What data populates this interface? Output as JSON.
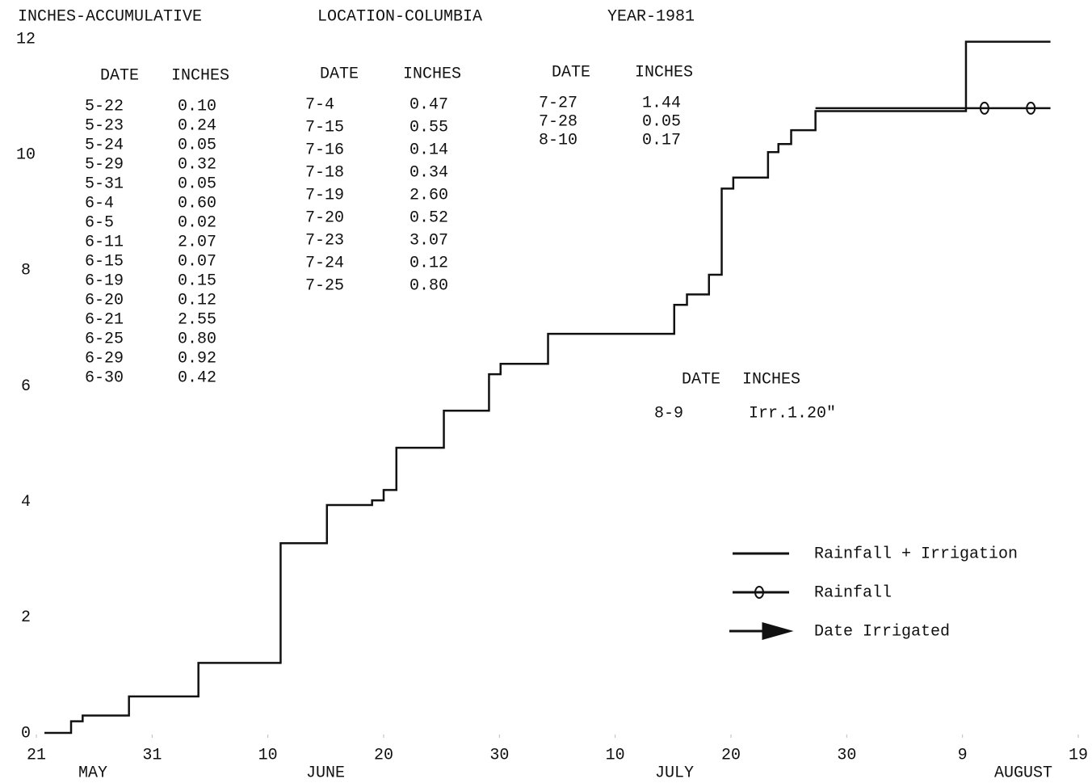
{
  "chart_data": {
    "type": "step",
    "title_left": "INCHES-ACCUMULATIVE",
    "title_center": "LOCATION-COLUMBIA",
    "title_right": "YEAR-1981",
    "x": [
      0.7,
      3.0,
      4.0,
      8.0,
      14.0,
      21.1,
      25.1,
      29.0,
      30.0,
      31.1,
      35.2,
      39.1,
      40.1,
      44.2,
      55.1,
      56.2,
      58.1,
      59.2,
      60.2,
      63.2,
      64.1,
      65.2,
      67.3,
      80.3,
      87.6
    ],
    "series": [
      {
        "name": "Rainfall + Irrigation",
        "color": "#111111",
        "x": [
          0.7,
          3.0,
          4.0,
          8.0,
          14.0,
          21.1,
          25.1,
          29.0,
          30.0,
          31.1,
          35.2,
          39.1,
          40.1,
          44.2,
          55.1,
          56.2,
          58.1,
          59.2,
          60.2,
          63.2,
          64.1,
          65.2,
          67.3,
          80.3,
          87.6
        ],
        "values": [
          0,
          0.2,
          0.3,
          0.63,
          1.21,
          3.28,
          3.94,
          4.02,
          4.2,
          4.93,
          5.57,
          6.2,
          6.38,
          6.9,
          7.4,
          7.58,
          7.92,
          9.41,
          9.6,
          10.04,
          10.18,
          10.42,
          10.75,
          11.95,
          11.95
        ]
      },
      {
        "name": "Rainfall",
        "color": "#111111",
        "x": [
          67.3,
          81.9,
          85.9,
          87.6
        ],
        "values": [
          10.8,
          10.8,
          10.8,
          10.8
        ]
      }
    ],
    "extra_legend": "Date Irrigated",
    "xlim": [
      0,
      90
    ],
    "xticks": [
      {
        "value": 0,
        "label": "21"
      },
      {
        "value": 10,
        "label": "31"
      },
      {
        "value": 20,
        "label": "10"
      },
      {
        "value": 30,
        "label": "20"
      },
      {
        "value": 40,
        "label": "30"
      },
      {
        "value": 50,
        "label": "10"
      },
      {
        "value": 60,
        "label": "20"
      },
      {
        "value": 70,
        "label": "30"
      },
      {
        "value": 80,
        "label": "9"
      },
      {
        "value": 90,
        "label": "19"
      }
    ],
    "months": [
      "MAY",
      "JUNE",
      "JULY",
      "AUGUST"
    ],
    "ylim": [
      0,
      12
    ],
    "yticks": [
      0,
      2,
      4,
      6,
      8,
      10,
      12
    ],
    "tables": [
      {
        "headers": [
          "DATE",
          "INCHES"
        ],
        "rows": [
          [
            "5-22",
            "0.10"
          ],
          [
            "5-23",
            "0.24"
          ],
          [
            "5-24",
            "0.05"
          ],
          [
            "5-29",
            "0.32"
          ],
          [
            "5-31",
            "0.05"
          ],
          [
            "6-4",
            "0.60"
          ],
          [
            "6-5",
            "0.02"
          ],
          [
            "6-11",
            "2.07"
          ],
          [
            "6-15",
            "0.07"
          ],
          [
            "6-19",
            "0.15"
          ],
          [
            "6-20",
            "0.12"
          ],
          [
            "6-21",
            "2.55"
          ],
          [
            "6-25",
            "0.80"
          ],
          [
            "6-29",
            "0.92"
          ],
          [
            "6-30",
            "0.42"
          ]
        ]
      },
      {
        "headers": [
          "DATE",
          "INCHES"
        ],
        "rows": [
          [
            "7-4",
            "0.47"
          ],
          [
            "7-15",
            "0.55"
          ],
          [
            "7-16",
            "0.14"
          ],
          [
            "7-18",
            "0.34"
          ],
          [
            "7-19",
            "2.60"
          ],
          [
            "7-20",
            "0.52"
          ],
          [
            "7-23",
            "3.07"
          ],
          [
            "7-24",
            "0.12"
          ],
          [
            "7-25",
            "0.80"
          ]
        ]
      },
      {
        "headers": [
          "DATE",
          "INCHES"
        ],
        "rows": [
          [
            "7-27",
            "1.44"
          ],
          [
            "7-28",
            "0.05"
          ],
          [
            "8-10",
            "0.17"
          ]
        ]
      },
      {
        "headers": [
          "DATE",
          "INCHES"
        ],
        "rows": [
          [
            "8-9",
            "Irr.1.20\""
          ]
        ]
      }
    ]
  }
}
